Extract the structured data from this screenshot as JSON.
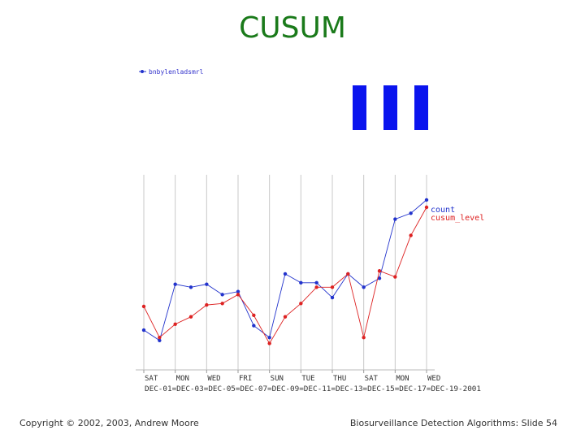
{
  "slide": {
    "title": "CUSUM",
    "footer_left": "Copyright © 2002, 2003, Andrew Moore",
    "footer_right": "Biosurveillance Detection Algorithms: Slide 54"
  },
  "top_legend": {
    "label": "bnbylenladsmrl"
  },
  "colors": {
    "count": "#2233cc",
    "cusum_level": "#dd2222",
    "bars": "#0a14ee",
    "grid": "#c8c8c8",
    "title": "#1a7a1a"
  },
  "chart_data": {
    "type": "line",
    "x_day_labels": [
      "SAT",
      "MON",
      "WED",
      "FRI",
      "SUN",
      "TUE",
      "THU",
      "SAT",
      "MON",
      "WED"
    ],
    "x_date_labels": [
      "DEC-01",
      "DEC-03",
      "DEC-05",
      "DEC-07",
      "DEC-09",
      "DEC-11",
      "DEC-13",
      "DEC-15",
      "DEC-17",
      "DEC-19-2001"
    ],
    "x_date_line": "DEC-01=DEC-03=DEC-05=DEC-07=DEC-09=DEC-11=DEC-13=DEC-15=DEC-17=DEC-19-2001",
    "x_index": [
      0,
      1,
      2,
      3,
      4,
      5,
      6,
      7,
      8,
      9,
      10,
      11,
      12,
      13,
      14,
      15,
      16,
      17,
      18
    ],
    "ylim": [
      0,
      10
    ],
    "series": [
      {
        "name": "count",
        "values": [
          1.7,
          1.0,
          4.8,
          4.6,
          4.8,
          4.1,
          4.3,
          2.0,
          1.2,
          5.5,
          4.9,
          4.9,
          3.9,
          5.5,
          4.6,
          5.2,
          9.2,
          9.6,
          10.5
        ]
      },
      {
        "name": "cusum_level",
        "values": [
          3.3,
          1.2,
          2.1,
          2.6,
          3.4,
          3.5,
          4.1,
          2.7,
          0.8,
          2.6,
          3.5,
          4.6,
          4.6,
          5.5,
          1.2,
          5.7,
          5.3,
          8.1,
          10.0
        ]
      }
    ],
    "bars": [
      1,
      1,
      1
    ],
    "legend_position": "top-right",
    "grid": true
  }
}
